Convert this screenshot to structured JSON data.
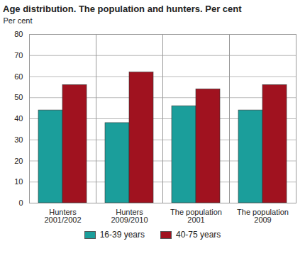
{
  "chart_data": {
    "type": "bar",
    "title": "Age distribution. The population and hunters. Per cent",
    "y_label": "Per cent",
    "categories": [
      "Hunters 2001/2002",
      "Hunters 2009/2010",
      "The population 2001",
      "The population 2009"
    ],
    "series": [
      {
        "name": "16-39 years",
        "color": "#1b9e9b",
        "values": [
          44,
          38,
          46,
          44
        ]
      },
      {
        "name": "40-75 years",
        "color": "#a0121f",
        "values": [
          56,
          62,
          54,
          56
        ]
      }
    ],
    "ylim": [
      0,
      80
    ],
    "yticks": [
      0,
      10,
      20,
      30,
      40,
      50,
      60,
      70,
      80
    ],
    "grid": true,
    "legend": "bottom"
  }
}
